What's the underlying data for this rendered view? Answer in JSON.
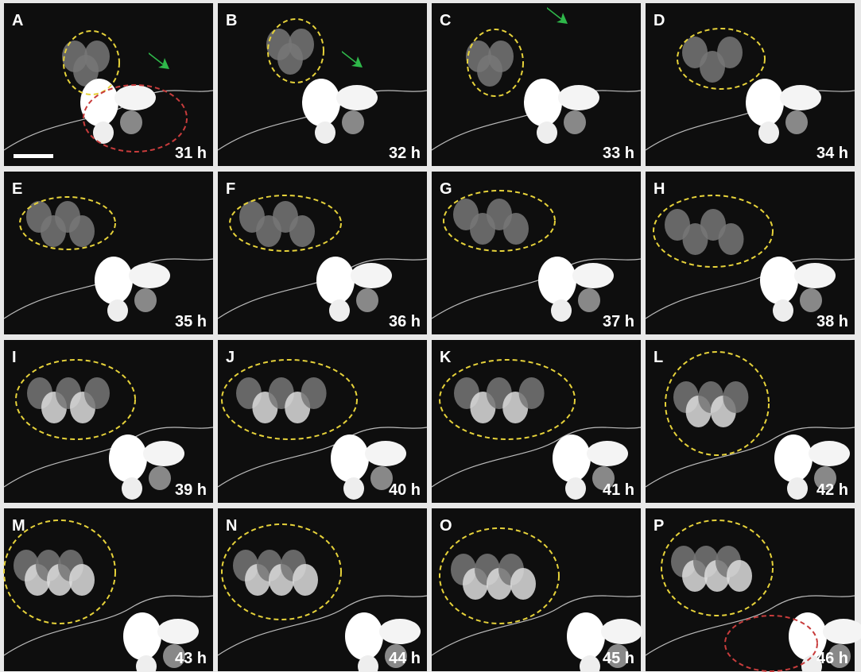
{
  "panels": [
    {
      "letter": "A",
      "time": "31 h"
    },
    {
      "letter": "B",
      "time": "32 h"
    },
    {
      "letter": "C",
      "time": "33 h"
    },
    {
      "letter": "D",
      "time": "34 h"
    },
    {
      "letter": "E",
      "time": "35 h"
    },
    {
      "letter": "F",
      "time": "36 h"
    },
    {
      "letter": "G",
      "time": "37 h"
    },
    {
      "letter": "H",
      "time": "38 h"
    },
    {
      "letter": "I",
      "time": "39 h"
    },
    {
      "letter": "J",
      "time": "40 h"
    },
    {
      "letter": "K",
      "time": "41 h"
    },
    {
      "letter": "L",
      "time": "42 h"
    },
    {
      "letter": "M",
      "time": "43 h"
    },
    {
      "letter": "N",
      "time": "44 h"
    },
    {
      "letter": "O",
      "time": "45 h"
    },
    {
      "letter": "P",
      "time": "46 h"
    }
  ]
}
